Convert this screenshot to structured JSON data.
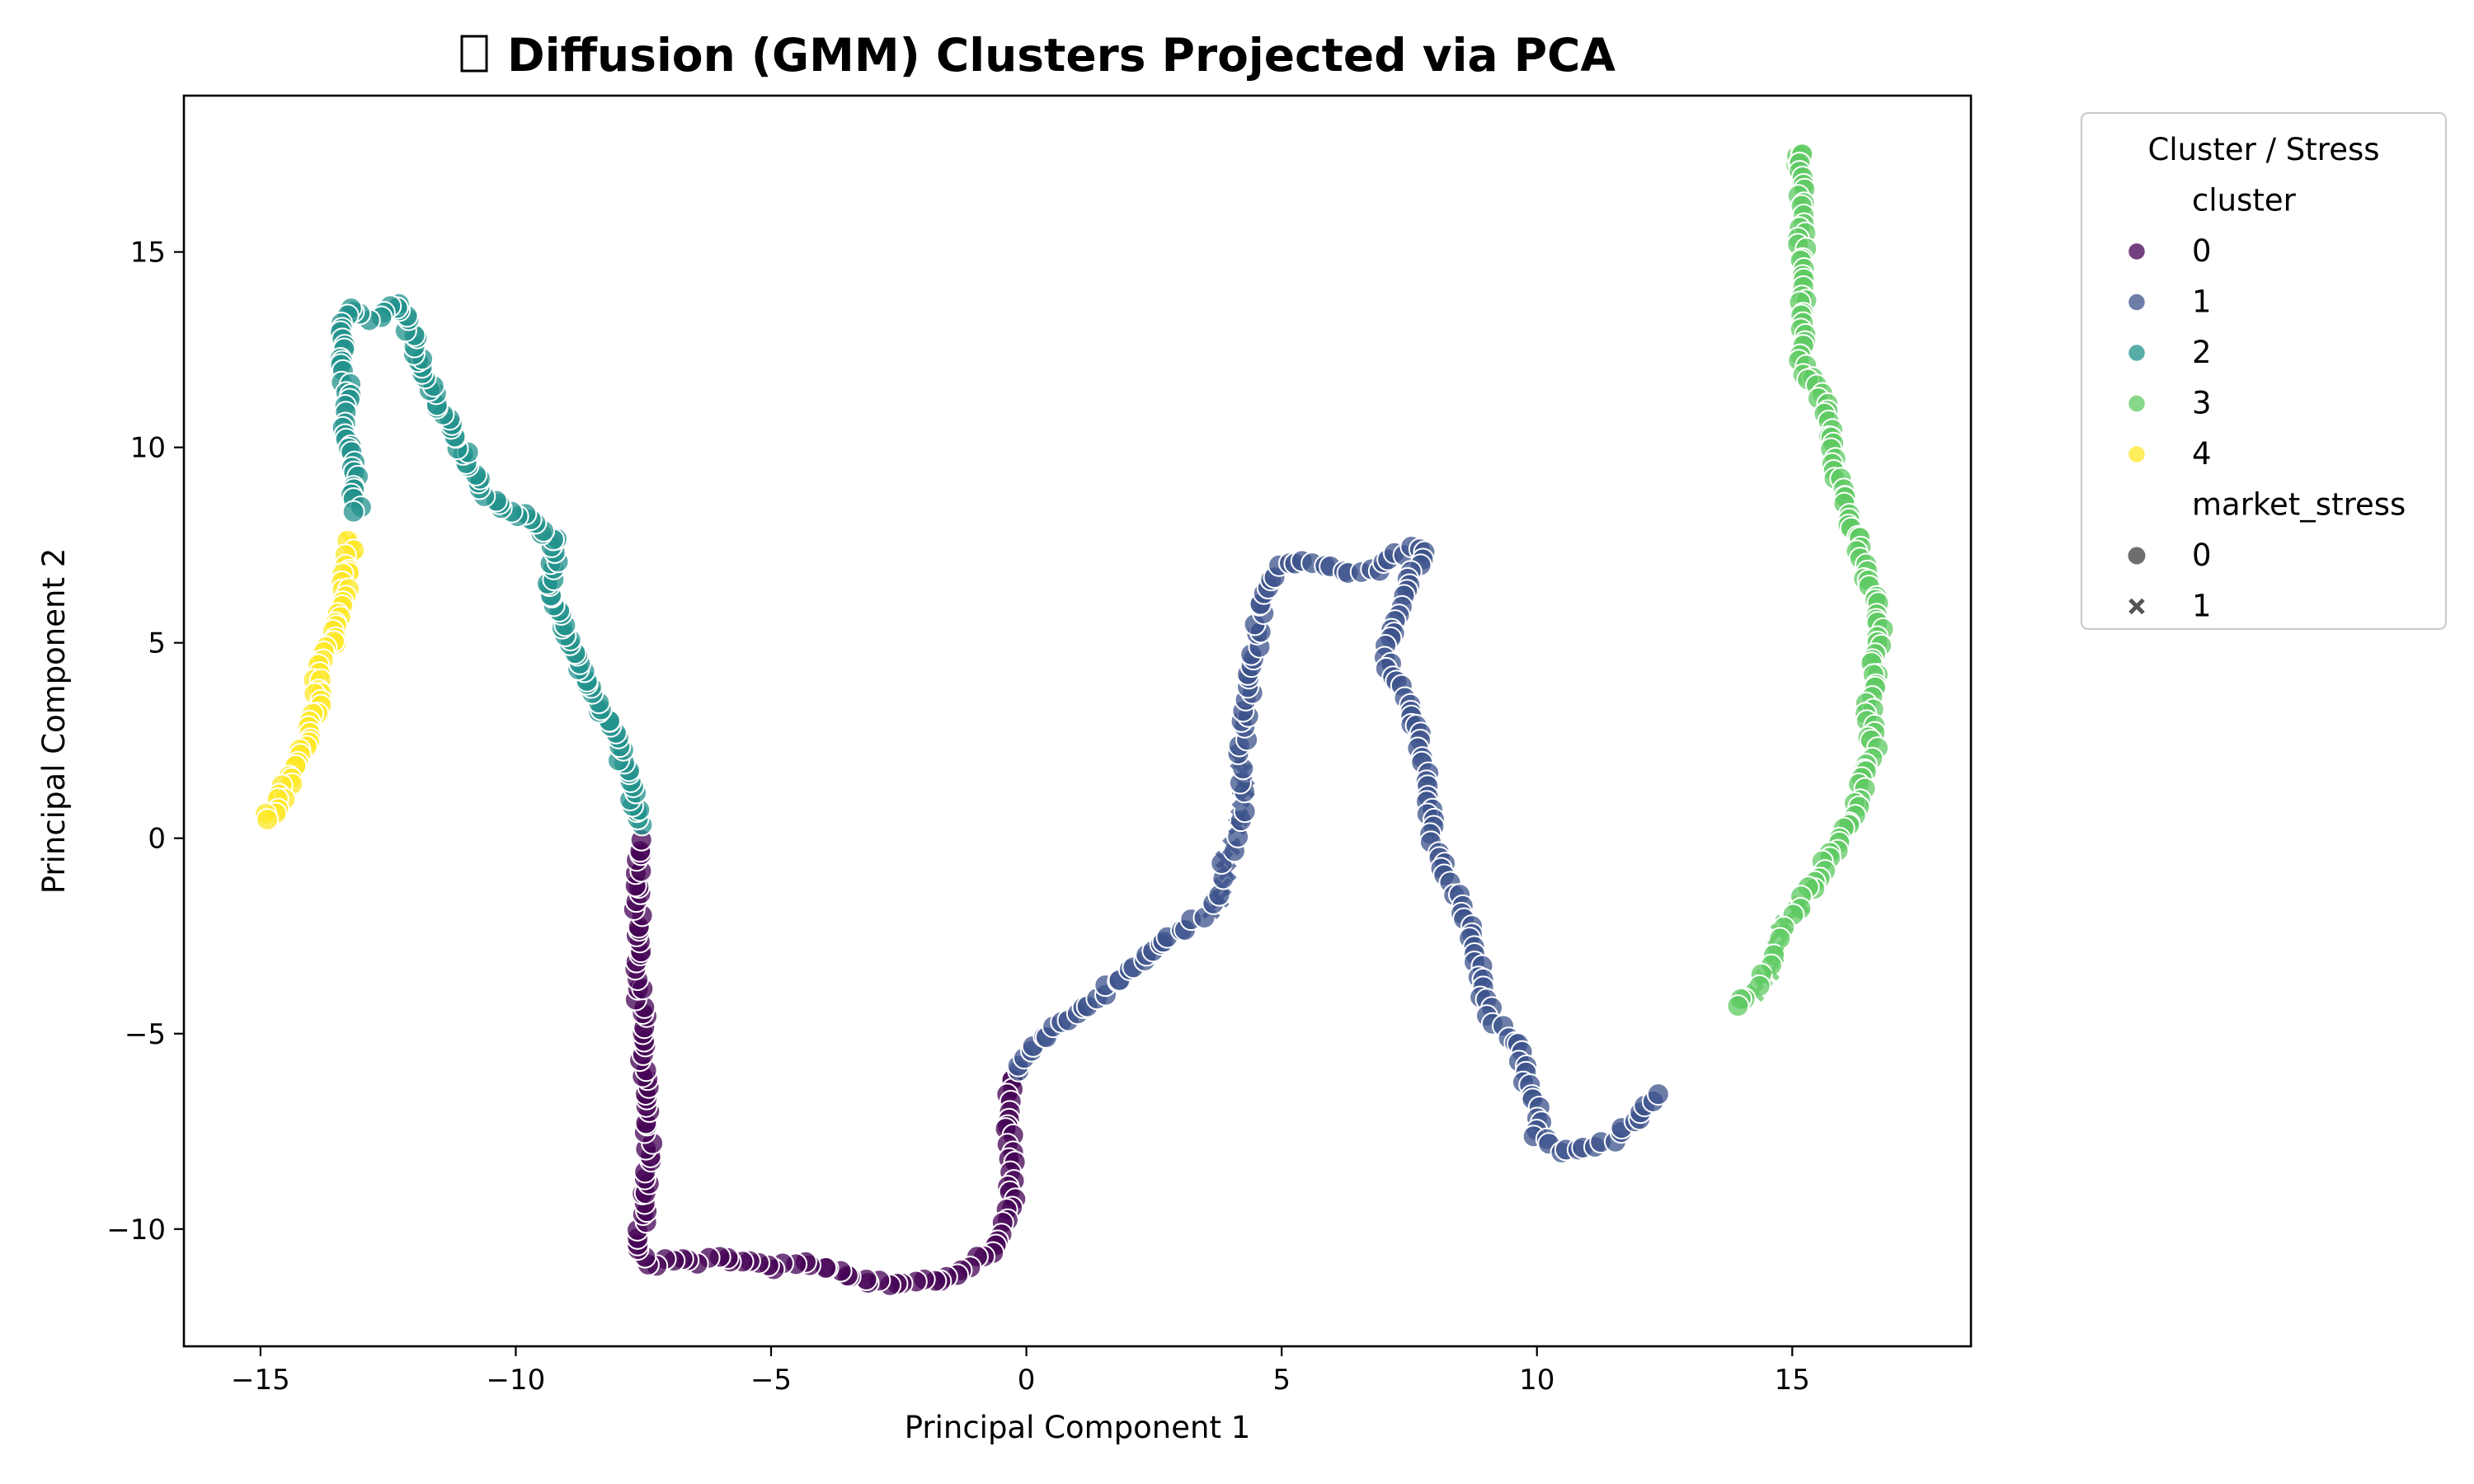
{
  "chart_data": {
    "type": "scatter",
    "title": "Diffusion (GMM) Clusters Projected via PCA",
    "title_icon": "missing-glyph-box",
    "xlabel": "Principal Component 1",
    "ylabel": "Principal Component 2",
    "xlim": [
      -16.5,
      18.5
    ],
    "ylim": [
      -13,
      19
    ],
    "xticks": [
      -15,
      -10,
      -5,
      0,
      5,
      10,
      15
    ],
    "yticks": [
      -10,
      -5,
      0,
      5,
      10,
      15
    ],
    "xtick_labels": [
      "−15",
      "−10",
      "−5",
      "0",
      "5",
      "10",
      "15"
    ],
    "ytick_labels": [
      "−10",
      "−5",
      "0",
      "5",
      "10",
      "15"
    ],
    "grid": false,
    "legend": {
      "title": "Cluster / Stress",
      "placement": "outside-upper-right",
      "hue_title": "cluster",
      "hue_entries": [
        {
          "label": "0",
          "color": "#440154"
        },
        {
          "label": "1",
          "color": "#3b528b"
        },
        {
          "label": "2",
          "color": "#21918c"
        },
        {
          "label": "3",
          "color": "#5ec962"
        },
        {
          "label": "4",
          "color": "#fde725"
        }
      ],
      "style_title": "market_stress",
      "style_entries": [
        {
          "label": "0",
          "marker": "circle"
        },
        {
          "label": "1",
          "marker": "x"
        }
      ]
    },
    "series": [
      {
        "name": "0",
        "color": "#440154",
        "path": [
          [
            -0.3,
            -6.1
          ],
          [
            -0.3,
            -6.5
          ],
          [
            -0.4,
            -7.2
          ],
          [
            -0.3,
            -7.8
          ],
          [
            -0.3,
            -8.6
          ],
          [
            -0.3,
            -9.3
          ],
          [
            -0.5,
            -10.0
          ],
          [
            -0.7,
            -10.6
          ],
          [
            -1.1,
            -10.9
          ],
          [
            -1.7,
            -11.3
          ],
          [
            -2.3,
            -11.4
          ],
          [
            -3.0,
            -11.4
          ],
          [
            -3.7,
            -11.1
          ],
          [
            -4.3,
            -10.9
          ],
          [
            -5.0,
            -11.0
          ],
          [
            -5.6,
            -10.8
          ],
          [
            -6.3,
            -10.8
          ],
          [
            -6.9,
            -10.8
          ],
          [
            -7.4,
            -10.9
          ],
          [
            -7.6,
            -10.5
          ],
          [
            -7.5,
            -9.6
          ],
          [
            -7.4,
            -8.7
          ],
          [
            -7.4,
            -7.7
          ],
          [
            -7.4,
            -6.7
          ],
          [
            -7.5,
            -5.8
          ],
          [
            -7.5,
            -4.8
          ],
          [
            -7.6,
            -3.8
          ],
          [
            -7.6,
            -2.8
          ],
          [
            -7.6,
            -1.8
          ],
          [
            -7.6,
            -0.9
          ],
          [
            -7.6,
            -0.1
          ]
        ],
        "n": 130
      },
      {
        "name": "1",
        "color": "#3b528b",
        "path": [
          [
            -0.2,
            -5.9
          ],
          [
            0.2,
            -5.3
          ],
          [
            0.8,
            -4.6
          ],
          [
            1.5,
            -4.0
          ],
          [
            2.2,
            -3.2
          ],
          [
            2.9,
            -2.4
          ],
          [
            3.4,
            -2.1
          ],
          [
            3.7,
            -1.6
          ],
          [
            3.9,
            -0.7
          ],
          [
            4.1,
            0.2
          ],
          [
            4.3,
            1.0
          ],
          [
            4.2,
            2.0
          ],
          [
            4.3,
            3.0
          ],
          [
            4.4,
            4.0
          ],
          [
            4.5,
            5.0
          ],
          [
            4.6,
            6.0
          ],
          [
            4.9,
            6.9
          ],
          [
            5.5,
            7.1
          ],
          [
            6.2,
            6.8
          ],
          [
            6.7,
            6.8
          ],
          [
            7.2,
            7.2
          ],
          [
            7.8,
            7.5
          ],
          [
            7.5,
            6.6
          ],
          [
            7.2,
            5.6
          ],
          [
            7.0,
            4.7
          ],
          [
            7.4,
            3.7
          ],
          [
            7.7,
            2.7
          ],
          [
            7.8,
            1.7
          ],
          [
            7.9,
            0.7
          ],
          [
            8.0,
            -0.2
          ],
          [
            8.3,
            -1.3
          ],
          [
            8.6,
            -1.9
          ],
          [
            9.1,
            -4.7
          ],
          [
            9.6,
            -5.3
          ],
          [
            9.8,
            -6.3
          ],
          [
            10.0,
            -7.0
          ],
          [
            10.0,
            -7.7
          ],
          [
            10.5,
            -8.0
          ],
          [
            11.1,
            -7.9
          ],
          [
            11.6,
            -7.6
          ],
          [
            12.0,
            -7.1
          ],
          [
            12.3,
            -6.5
          ]
        ],
        "n": 200
      },
      {
        "name": "2",
        "color": "#21918c",
        "path": [
          [
            -7.6,
            0.3
          ],
          [
            -7.7,
            1.2
          ],
          [
            -8.0,
            2.3
          ],
          [
            -8.3,
            3.3
          ],
          [
            -8.7,
            4.4
          ],
          [
            -9.1,
            5.5
          ],
          [
            -9.3,
            6.6
          ],
          [
            -9.2,
            7.6
          ],
          [
            -9.7,
            8.1
          ],
          [
            -10.3,
            8.6
          ],
          [
            -10.7,
            9.0
          ],
          [
            -11.0,
            9.9
          ],
          [
            -11.4,
            10.8
          ],
          [
            -11.7,
            11.6
          ],
          [
            -12.0,
            12.7
          ],
          [
            -12.3,
            13.7
          ],
          [
            -12.8,
            13.3
          ],
          [
            -13.3,
            13.5
          ],
          [
            -13.4,
            12.6
          ],
          [
            -13.3,
            11.5
          ],
          [
            -13.4,
            10.6
          ],
          [
            -13.2,
            9.5
          ],
          [
            -13.1,
            8.3
          ]
        ],
        "n": 140
      },
      {
        "name": "3",
        "color": "#5ec962",
        "path": [
          [
            15.0,
            17.3
          ],
          [
            15.2,
            17.6
          ],
          [
            15.2,
            12.1
          ],
          [
            15.6,
            11.2
          ],
          [
            15.8,
            10.3
          ],
          [
            15.9,
            9.3
          ],
          [
            16.1,
            8.3
          ],
          [
            16.3,
            7.3
          ],
          [
            16.6,
            6.2
          ],
          [
            16.7,
            5.3
          ],
          [
            16.6,
            4.3
          ],
          [
            16.5,
            3.3
          ],
          [
            16.6,
            2.3
          ],
          [
            16.4,
            1.4
          ],
          [
            16.1,
            0.3
          ],
          [
            15.7,
            -0.6
          ],
          [
            15.2,
            -1.5
          ],
          [
            14.8,
            -2.4
          ],
          [
            14.5,
            -3.4
          ],
          [
            14.0,
            -4.3
          ]
        ],
        "n": 150
      },
      {
        "name": "4",
        "color": "#fde725",
        "path": [
          [
            -13.2,
            7.7
          ],
          [
            -13.3,
            6.8
          ],
          [
            -13.4,
            5.8
          ],
          [
            -13.6,
            5.0
          ],
          [
            -13.9,
            4.3
          ],
          [
            -13.9,
            3.3
          ],
          [
            -14.1,
            2.4
          ],
          [
            -14.4,
            1.6
          ],
          [
            -14.7,
            0.8
          ],
          [
            -14.9,
            0.5
          ]
        ],
        "n": 60
      }
    ],
    "stress_markers": [
      {
        "cluster": "3",
        "x_range": [
          14.0,
          15.7
        ],
        "y_range": [
          -4.4,
          -1.3
        ]
      },
      {
        "cluster": "1",
        "x_range": [
          3.4,
          4.6
        ],
        "y_range": [
          -2.2,
          2.1
        ]
      },
      {
        "cluster": "4",
        "x_range": [
          -13.3,
          -13.1
        ],
        "y_range": [
          7.2,
          7.8
        ]
      }
    ]
  }
}
